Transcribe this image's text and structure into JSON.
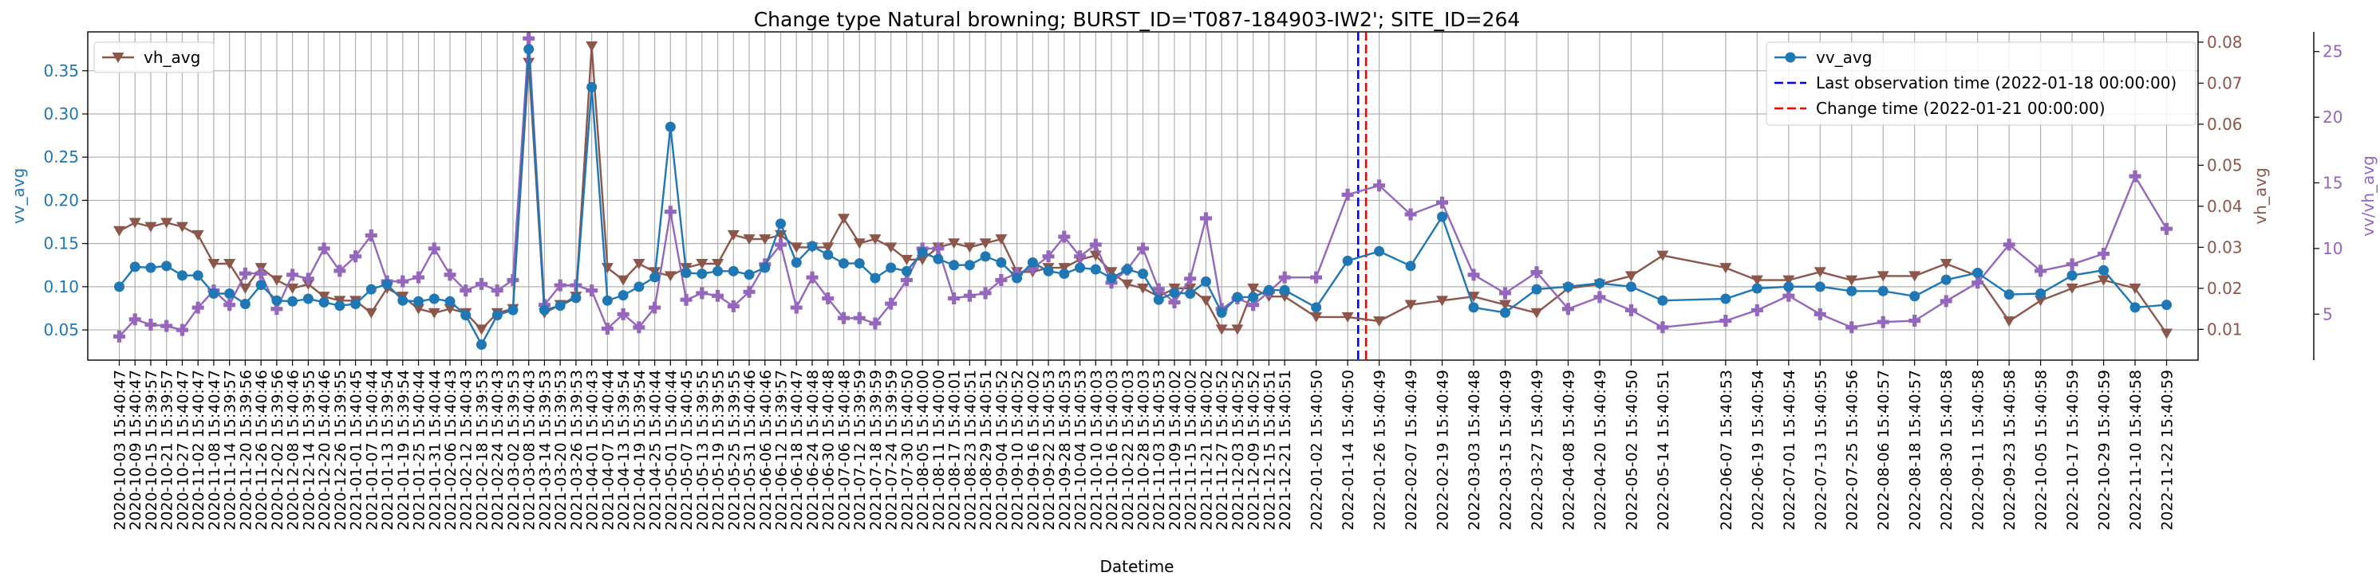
{
  "chart_data": {
    "type": "line",
    "title": "Change type Natural browning; BURST_ID='T087-184903-IW2'; SITE_ID=264",
    "xlabel": "Datetime",
    "ylabel_left": "vv_avg",
    "ylabel_right": "vh_avg",
    "ylabel_far_right": "vv/vh_avg",
    "grid": true,
    "ylim_left": [
      0.015,
      0.395
    ],
    "ylim_right": [
      0.0025,
      0.0825
    ],
    "ylim_far_right": [
      1.5,
      26.5
    ],
    "yticks_left": [
      "0.05",
      "0.10",
      "0.15",
      "0.20",
      "0.25",
      "0.30",
      "0.35"
    ],
    "yticks_right": [
      "0.01",
      "0.02",
      "0.03",
      "0.04",
      "0.05",
      "0.06",
      "0.07",
      "0.08"
    ],
    "yticks_far_right": [
      "5",
      "10",
      "15",
      "20",
      "25"
    ],
    "x_dates": [
      "2020-10-03",
      "2020-10-09",
      "2020-10-15",
      "2020-10-21",
      "2020-10-27",
      "2020-11-02",
      "2020-11-08",
      "2020-11-14",
      "2020-11-20",
      "2020-11-26",
      "2020-12-02",
      "2020-12-08",
      "2020-12-14",
      "2020-12-20",
      "2020-12-26",
      "2021-01-01",
      "2021-01-07",
      "2021-01-13",
      "2021-01-19",
      "2021-01-25",
      "2021-01-31",
      "2021-02-06",
      "2021-02-12",
      "2021-02-18",
      "2021-02-24",
      "2021-03-02",
      "2021-03-08",
      "2021-03-14",
      "2021-03-20",
      "2021-03-26",
      "2021-04-01",
      "2021-04-07",
      "2021-04-13",
      "2021-04-19",
      "2021-04-25",
      "2021-05-01",
      "2021-05-07",
      "2021-05-13",
      "2021-05-19",
      "2021-05-25",
      "2021-05-31",
      "2021-06-06",
      "2021-06-12",
      "2021-06-18",
      "2021-06-24",
      "2021-06-30",
      "2021-07-06",
      "2021-07-12",
      "2021-07-18",
      "2021-07-24",
      "2021-07-30",
      "2021-08-05",
      "2021-08-11",
      "2021-08-17",
      "2021-08-23",
      "2021-08-29",
      "2021-09-04",
      "2021-09-10",
      "2021-09-16",
      "2021-09-22",
      "2021-09-28",
      "2021-10-04",
      "2021-10-10",
      "2021-10-16",
      "2021-10-22",
      "2021-10-28",
      "2021-11-03",
      "2021-11-09",
      "2021-11-15",
      "2021-11-21",
      "2021-11-27",
      "2021-12-03",
      "2021-12-09",
      "2021-12-15",
      "2021-12-21",
      "2022-01-02",
      "2022-01-14",
      "2022-01-26",
      "2022-02-07",
      "2022-02-19",
      "2022-03-03",
      "2022-03-15",
      "2022-03-27",
      "2022-04-08",
      "2022-04-20",
      "2022-05-02",
      "2022-05-14",
      "2022-06-07",
      "2022-06-19",
      "2022-07-01",
      "2022-07-13",
      "2022-07-25",
      "2022-08-06",
      "2022-08-18",
      "2022-08-30",
      "2022-09-11",
      "2022-09-23",
      "2022-10-05",
      "2022-10-17",
      "2022-10-29",
      "2022-11-10",
      "2022-11-22"
    ],
    "x_tick_labels": [
      "2020-10-03 15:40:47",
      "2020-10-09 15:40:47",
      "2020-10-15 15:39:57",
      "2020-10-21 15:39:57",
      "2020-10-27 15:40:47",
      "2020-11-02 15:40:47",
      "2020-11-08 15:40:47",
      "2020-11-14 15:39:57",
      "2020-11-20 15:39:56",
      "2020-11-26 15:40:46",
      "2020-12-02 15:39:56",
      "2020-12-08 15:40:46",
      "2020-12-14 15:39:55",
      "2020-12-20 15:40:46",
      "2020-12-26 15:39:55",
      "2021-01-01 15:40:45",
      "2021-01-07 15:40:44",
      "2021-01-13 15:39:54",
      "2021-01-19 15:39:54",
      "2021-01-25 15:40:44",
      "2021-01-31 15:40:44",
      "2021-02-06 15:40:43",
      "2021-02-12 15:40:43",
      "2021-02-18 15:39:53",
      "2021-02-24 15:40:43",
      "2021-03-02 15:39:53",
      "2021-03-08 15:40:43",
      "2021-03-14 15:39:53",
      "2021-03-20 15:39:53",
      "2021-03-26 15:39:53",
      "2021-04-01 15:40:43",
      "2021-04-07 15:40:44",
      "2021-04-13 15:39:54",
      "2021-04-19 15:39:54",
      "2021-04-25 15:40:44",
      "2021-05-01 15:40:44",
      "2021-05-07 15:40:45",
      "2021-05-13 15:39:55",
      "2021-05-19 15:39:55",
      "2021-05-25 15:39:55",
      "2021-05-31 15:40:46",
      "2021-06-06 15:40:46",
      "2021-06-12 15:39:57",
      "2021-06-18 15:40:47",
      "2021-06-24 15:40:48",
      "2021-06-30 15:40:48",
      "2021-07-06 15:40:48",
      "2021-07-12 15:39:59",
      "2021-07-18 15:39:59",
      "2021-07-24 15:39:59",
      "2021-07-30 15:40:50",
      "2021-08-05 15:40:00",
      "2021-08-11 15:40:00",
      "2021-08-17 15:40:01",
      "2021-08-23 15:40:51",
      "2021-08-29 15:40:51",
      "2021-09-04 15:40:52",
      "2021-09-10 15:40:52",
      "2021-09-16 15:40:02",
      "2021-09-22 15:40:53",
      "2021-09-28 15:40:53",
      "2021-10-04 15:40:53",
      "2021-10-10 15:40:03",
      "2021-10-16 15:40:03",
      "2021-10-22 15:40:03",
      "2021-10-28 15:40:03",
      "2021-11-03 15:40:53",
      "2021-11-09 15:40:02",
      "2021-11-15 15:40:02",
      "2021-11-21 15:40:02",
      "2021-11-27 15:40:52",
      "2021-12-03 15:40:52",
      "2021-12-09 15:40:52",
      "2021-12-15 15:40:51",
      "2021-12-21 15:40:51",
      "2022-01-02 15:40:50",
      "2022-01-14 15:40:50",
      "2022-01-26 15:40:49",
      "2022-02-07 15:40:49",
      "2022-02-19 15:40:49",
      "2022-03-03 15:40:48",
      "2022-03-15 15:40:49",
      "2022-03-27 15:40:49",
      "2022-04-08 15:40:49",
      "2022-04-20 15:40:49",
      "2022-05-02 15:40:50",
      "2022-05-14 15:40:51",
      "2022-06-07 15:40:53",
      "2022-06-19 15:40:54",
      "2022-07-01 15:40:54",
      "2022-07-13 15:40:55",
      "2022-07-25 15:40:56",
      "2022-08-06 15:40:57",
      "2022-08-18 15:40:57",
      "2022-08-30 15:40:58",
      "2022-09-11 15:40:58",
      "2022-09-23 15:40:58",
      "2022-10-05 15:40:58",
      "2022-10-17 15:40:59",
      "2022-10-29 15:40:59",
      "2022-11-10 15:40:58",
      "2022-11-22 15:40:59"
    ],
    "series": [
      {
        "name": "vv_avg",
        "axis": "left",
        "color": "#1f77b4",
        "marker": "circle",
        "values": [
          0.1,
          0.123,
          0.122,
          0.124,
          0.113,
          0.113,
          0.092,
          0.092,
          0.08,
          0.102,
          0.084,
          0.083,
          0.086,
          0.082,
          0.078,
          0.08,
          0.097,
          0.103,
          0.084,
          0.083,
          0.086,
          0.083,
          0.067,
          0.033,
          0.067,
          0.073,
          0.375,
          0.073,
          0.078,
          0.087,
          0.331,
          0.084,
          0.09,
          0.1,
          0.111,
          0.285,
          0.116,
          0.115,
          0.118,
          0.118,
          0.114,
          0.122,
          0.173,
          0.128,
          0.147,
          0.137,
          0.127,
          0.127,
          0.11,
          0.122,
          0.118,
          0.14,
          0.132,
          0.125,
          0.125,
          0.135,
          0.128,
          0.11,
          0.128,
          0.118,
          0.115,
          0.122,
          0.12,
          0.11,
          0.12,
          0.115,
          0.085,
          0.093,
          0.092,
          0.106,
          0.07,
          0.088,
          0.088,
          0.096,
          0.096,
          0.076,
          0.13,
          0.141,
          0.124,
          0.181,
          0.076,
          0.07,
          0.097,
          0.1,
          0.104,
          0.1,
          0.084,
          0.086,
          0.098,
          0.1,
          0.1,
          0.095,
          0.095,
          0.089,
          0.108,
          0.116,
          0.091,
          0.092,
          0.113,
          0.119,
          0.076,
          0.079
        ]
      },
      {
        "name": "vh_avg",
        "axis": "right",
        "color": "#8c564b",
        "marker": "triangle-down",
        "values": [
          0.034,
          0.036,
          0.035,
          0.036,
          0.035,
          0.033,
          0.026,
          0.026,
          0.02,
          0.025,
          0.022,
          0.02,
          0.021,
          0.018,
          0.017,
          0.017,
          0.014,
          0.02,
          0.018,
          0.015,
          0.014,
          0.015,
          0.014,
          0.01,
          0.014,
          0.015,
          0.075,
          0.014,
          0.016,
          0.018,
          0.079,
          0.025,
          0.022,
          0.026,
          0.024,
          0.023,
          0.025,
          0.026,
          0.026,
          0.033,
          0.032,
          0.032,
          0.033,
          0.03,
          0.03,
          0.03,
          0.037,
          0.031,
          0.032,
          0.03,
          0.027,
          0.027,
          0.03,
          0.031,
          0.03,
          0.031,
          0.032,
          0.024,
          0.024,
          0.025,
          0.025,
          0.027,
          0.028,
          0.024,
          0.021,
          0.02,
          0.018,
          0.02,
          0.02,
          0.017,
          0.01,
          0.01,
          0.02,
          0.018,
          0.018,
          0.013,
          0.013,
          0.012,
          0.016,
          0.017,
          0.018,
          0.016,
          0.014,
          0.02,
          0.021,
          0.023,
          0.028,
          0.025,
          0.022,
          0.022,
          0.024,
          0.022,
          0.023,
          0.023,
          0.026,
          0.023,
          0.012,
          0.017,
          0.02,
          0.022,
          0.02,
          0.009
        ]
      },
      {
        "name": "vv/vh_avg",
        "axis": "far_right",
        "color": "#9467bd",
        "marker": "plus",
        "values": [
          3.3,
          4.6,
          4.2,
          4.1,
          3.8,
          5.5,
          6.8,
          5.7,
          8.1,
          8.1,
          5.4,
          8,
          7.7,
          10,
          8.3,
          9.4,
          11,
          7.5,
          7.5,
          7.8,
          10,
          8,
          6.8,
          7.3,
          6.8,
          7.6,
          26,
          5.7,
          7.2,
          7.2,
          6.8,
          3.9,
          5,
          4,
          5.5,
          12.8,
          6.1,
          6.6,
          6.4,
          5.6,
          6.7,
          8.8,
          10.3,
          5.5,
          7.8,
          6.2,
          4.7,
          4.7,
          4.3,
          5.8,
          7.6,
          10,
          10,
          6.2,
          6.4,
          6.6,
          7.6,
          8.1,
          8.5,
          9.4,
          10.9,
          9.4,
          10.3,
          7.4,
          8.4,
          10,
          6.9,
          5.9,
          7.7,
          12.3,
          5.4,
          6.2,
          5.7,
          6.7,
          7.8,
          7.8,
          14.1,
          14.8,
          12.6,
          13.5,
          8,
          6.6,
          8.2,
          5.4,
          6.3,
          5.3,
          4,
          4.5,
          5.3,
          6.4,
          5,
          4,
          4.4,
          4.5,
          6,
          7.4,
          10.3,
          8.3,
          8.8,
          9.6,
          15.5,
          11.5
        ]
      }
    ],
    "vlines": [
      {
        "label": "Last observation time (2022-01-18 00:00:00)",
        "date": "2022-01-18",
        "color": "#0000ff",
        "style": "dashed"
      },
      {
        "label": "Change time (2022-01-21 00:00:00)",
        "date": "2022-01-21",
        "color": "#ff0000",
        "style": "dashed"
      }
    ],
    "legend_left": {
      "placement": "top-left",
      "entries": [
        "vh_avg"
      ]
    },
    "legend_right": {
      "placement": "top-right",
      "entries": [
        "vv_avg",
        "Last observation time (2022-01-18 00:00:00)",
        "Change time (2022-01-21 00:00:00)"
      ]
    }
  }
}
